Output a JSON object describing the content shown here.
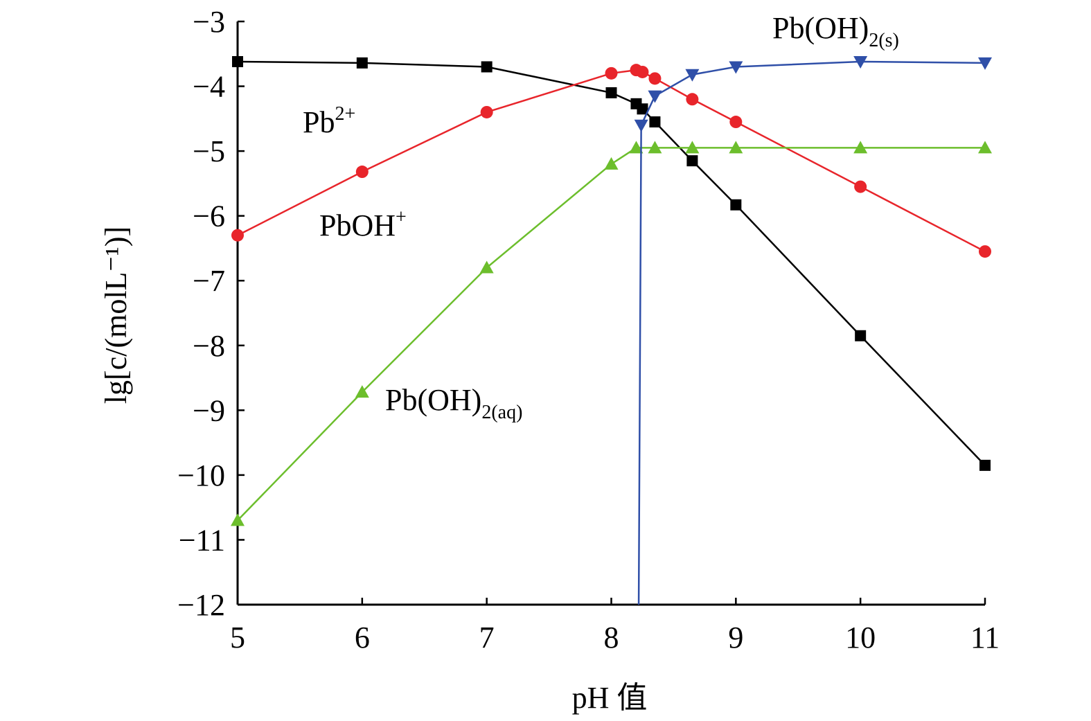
{
  "chart_data": {
    "type": "line",
    "xlabel": "pH 值",
    "ylabel": "lg[c/(molL⁻¹)]",
    "xlim": [
      5,
      11
    ],
    "ylim": [
      -12,
      -3
    ],
    "x_ticks": [
      "5",
      "6",
      "7",
      "8",
      "9",
      "10",
      "11"
    ],
    "y_ticks": [
      "−3",
      "−4",
      "−5",
      "−6",
      "−7",
      "−8",
      "−9",
      "−10",
      "−11",
      "−12"
    ],
    "grid": false,
    "series": [
      {
        "name": "Pb2+",
        "label_base": "Pb",
        "label_sup": "2+",
        "label_sub": "",
        "color": "#000000",
        "marker": "square",
        "x": [
          5,
          6,
          7,
          8,
          8.2,
          8.25,
          8.35,
          8.65,
          9,
          10,
          11
        ],
        "y": [
          -3.62,
          -3.64,
          -3.7,
          -4.1,
          -4.27,
          -4.35,
          -4.55,
          -5.15,
          -5.83,
          -7.85,
          -9.85
        ]
      },
      {
        "name": "PbOH+",
        "label_base": "PbOH",
        "label_sup": "+",
        "label_sub": "",
        "color": "#e8252b",
        "marker": "circle",
        "x": [
          5,
          6,
          7,
          8,
          8.2,
          8.25,
          8.35,
          8.65,
          9,
          10,
          11
        ],
        "y": [
          -6.3,
          -5.32,
          -4.4,
          -3.8,
          -3.75,
          -3.78,
          -3.88,
          -4.2,
          -4.55,
          -5.55,
          -6.55
        ]
      },
      {
        "name": "Pb(OH)2(aq)",
        "label_base": "Pb(OH)",
        "label_sup": "",
        "label_sub": "2(aq)",
        "color": "#6cbe2c",
        "marker": "triangle-up",
        "x": [
          5,
          6,
          7,
          8,
          8.2,
          8.35,
          8.65,
          9,
          10,
          11
        ],
        "y": [
          -10.7,
          -8.72,
          -6.8,
          -5.2,
          -4.95,
          -4.95,
          -4.95,
          -4.95,
          -4.95,
          -4.95
        ]
      },
      {
        "name": "Pb(OH)2(s)",
        "label_base": "Pb(OH)",
        "label_sup": "",
        "label_sub": "2(s)",
        "color": "#2f4fa8",
        "marker": "triangle-down",
        "x": [
          8.22,
          8.24,
          8.35,
          8.65,
          9,
          10,
          11
        ],
        "y": [
          -12,
          -4.6,
          -4.15,
          -3.82,
          -3.7,
          -3.62,
          -3.64
        ],
        "marked": [
          false,
          true,
          true,
          true,
          true,
          true,
          true
        ]
      }
    ]
  }
}
